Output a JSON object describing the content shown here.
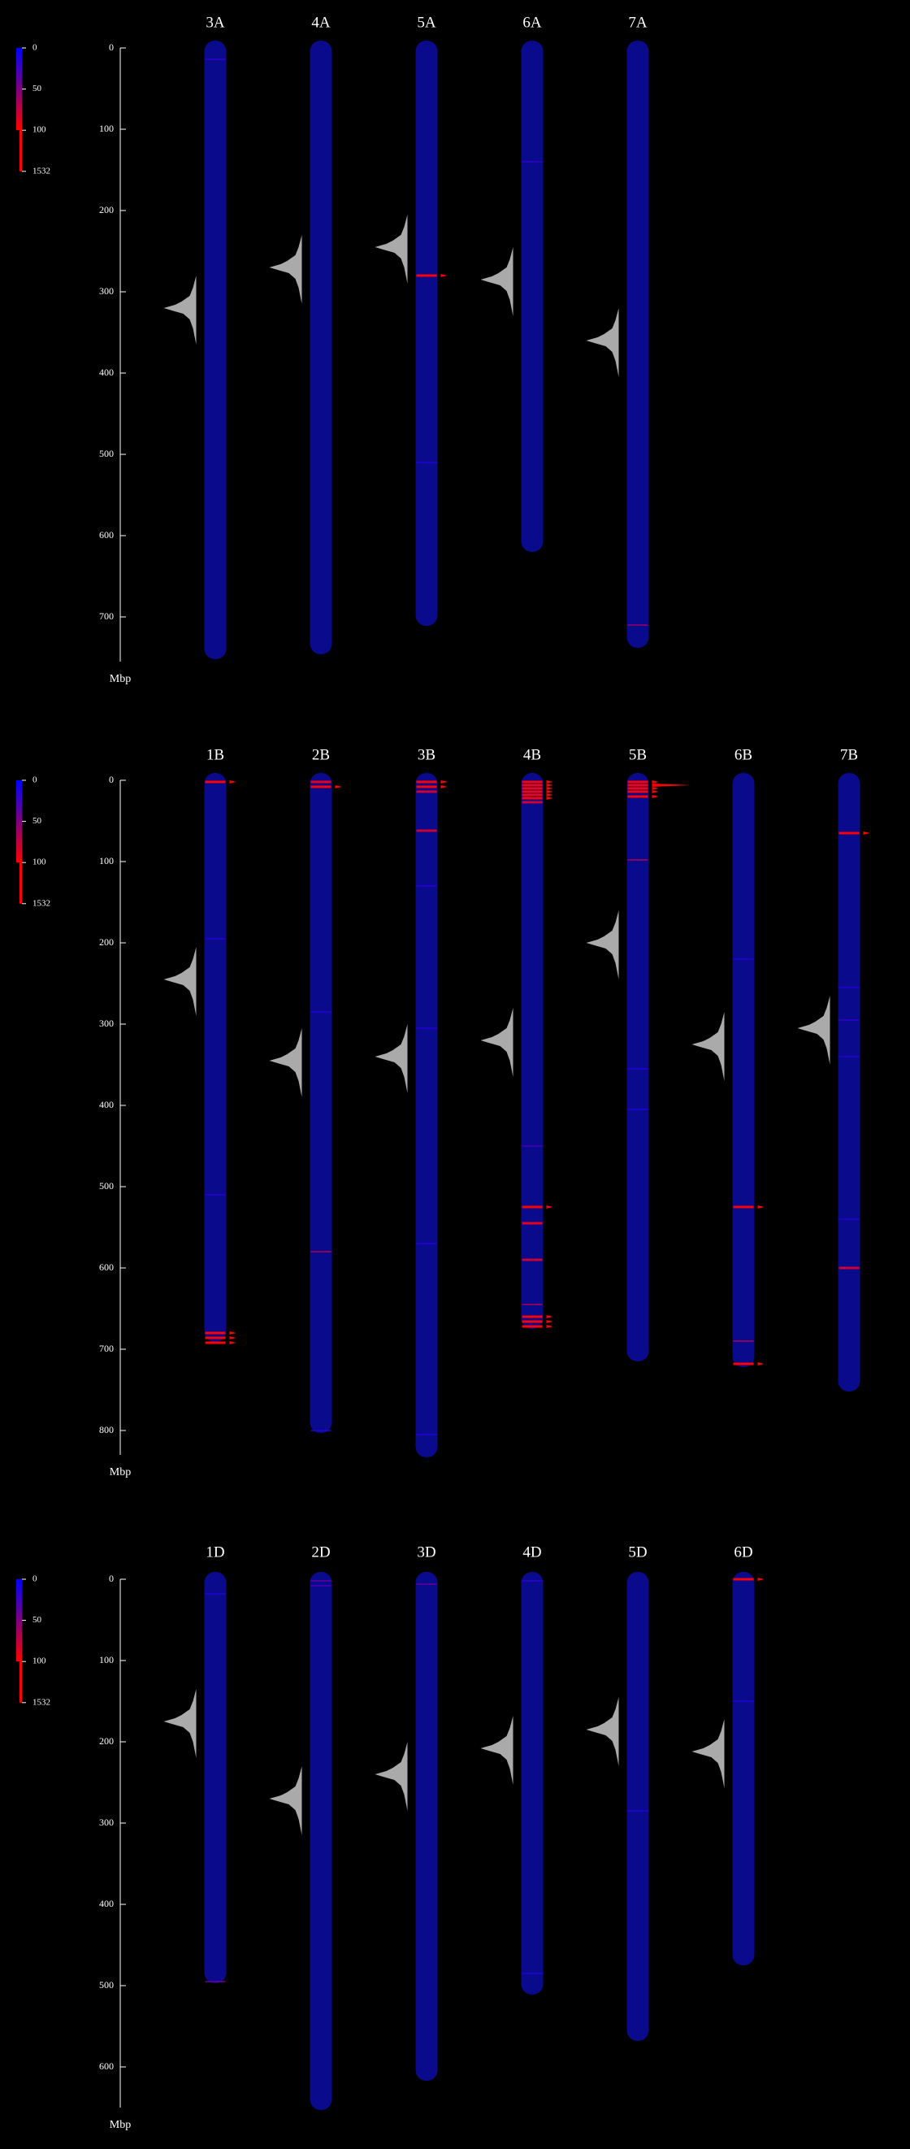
{
  "chart_data": [
    {
      "type": "ideogram",
      "ylabel": "Mbp",
      "color": "#0a0a8c",
      "peak_color": "#c8c8c8",
      "color_scale": {
        "ticks": [
          0,
          50,
          100,
          1532
        ],
        "colors": [
          "#0000ff",
          "#ff0000"
        ]
      },
      "ylim": [
        0,
        755
      ],
      "yticks": [
        0,
        100,
        200,
        300,
        400,
        500,
        600,
        700
      ],
      "categories": [
        "3A",
        "4A",
        "5A",
        "6A",
        "7A"
      ],
      "values": [
        750,
        744,
        709,
        618,
        736
      ],
      "peaks": [
        320,
        270,
        245,
        285,
        360
      ],
      "bands": [
        [
          {
            "pos": 14,
            "count": 20
          }
        ],
        [],
        [
          {
            "pos": 280,
            "count": 100
          },
          {
            "pos": 510,
            "count": 15
          }
        ],
        [
          {
            "pos": 140,
            "count": 20
          }
        ],
        [
          {
            "pos": 710,
            "count": 60
          }
        ]
      ]
    },
    {
      "type": "ideogram",
      "ylabel": "Mbp",
      "color": "#0a0a8c",
      "peak_color": "#c8c8c8",
      "color_scale": {
        "ticks": [
          0,
          50,
          100,
          1532
        ],
        "colors": [
          "#0000ff",
          "#ff0000"
        ]
      },
      "ylim": [
        0,
        830
      ],
      "yticks": [
        0,
        100,
        200,
        300,
        400,
        500,
        600,
        700,
        800
      ],
      "categories": [
        "1B",
        "2B",
        "3B",
        "4B",
        "5B",
        "6B",
        "7B"
      ],
      "values": [
        689,
        801,
        831,
        673,
        713,
        720,
        750
      ],
      "peaks": [
        245,
        345,
        340,
        320,
        200,
        325,
        305
      ],
      "bands": [
        [
          {
            "pos": 2,
            "count": 100
          },
          {
            "pos": 195,
            "count": 15
          },
          {
            "pos": 510,
            "count": 15
          },
          {
            "pos": 680,
            "count": 100
          },
          {
            "pos": 686,
            "count": 100
          },
          {
            "pos": 692,
            "count": 100
          }
        ],
        [
          {
            "pos": 2,
            "count": 90
          },
          {
            "pos": 8,
            "count": 100
          },
          {
            "pos": 285,
            "count": 15
          },
          {
            "pos": 580,
            "count": 70
          },
          {
            "pos": 800,
            "count": 15
          }
        ],
        [
          {
            "pos": 2,
            "count": 120
          },
          {
            "pos": 8,
            "count": 100
          },
          {
            "pos": 14,
            "count": 80
          },
          {
            "pos": 62,
            "count": 80
          },
          {
            "pos": 130,
            "count": 15
          },
          {
            "pos": 305,
            "count": 15
          },
          {
            "pos": 570,
            "count": 15
          },
          {
            "pos": 805,
            "count": 15
          }
        ],
        [
          {
            "pos": 2,
            "count": 100
          },
          {
            "pos": 6,
            "count": 100
          },
          {
            "pos": 10,
            "count": 100
          },
          {
            "pos": 14,
            "count": 100
          },
          {
            "pos": 18,
            "count": 100
          },
          {
            "pos": 22,
            "count": 100
          },
          {
            "pos": 27,
            "count": 80
          },
          {
            "pos": 450,
            "count": 30
          },
          {
            "pos": 525,
            "count": 100
          },
          {
            "pos": 545,
            "count": 90
          },
          {
            "pos": 590,
            "count": 80
          },
          {
            "pos": 645,
            "count": 70
          },
          {
            "pos": 660,
            "count": 100
          },
          {
            "pos": 666,
            "count": 100
          },
          {
            "pos": 672,
            "count": 100
          }
        ],
        [
          {
            "pos": 2,
            "count": 100
          },
          {
            "pos": 6,
            "count": 1532
          },
          {
            "pos": 10,
            "count": 100
          },
          {
            "pos": 14,
            "count": 100
          },
          {
            "pos": 20,
            "count": 100
          },
          {
            "pos": 98,
            "count": 70
          },
          {
            "pos": 355,
            "count": 15
          },
          {
            "pos": 405,
            "count": 15
          }
        ],
        [
          {
            "pos": 220,
            "count": 15
          },
          {
            "pos": 525,
            "count": 100
          },
          {
            "pos": 690,
            "count": 70
          },
          {
            "pos": 718,
            "count": 100
          }
        ],
        [
          {
            "pos": 65,
            "count": 100
          },
          {
            "pos": 255,
            "count": 15
          },
          {
            "pos": 295,
            "count": 20
          },
          {
            "pos": 340,
            "count": 15
          },
          {
            "pos": 540,
            "count": 15
          },
          {
            "pos": 600,
            "count": 80
          }
        ]
      ]
    },
    {
      "type": "ideogram",
      "ylabel": "Mbp",
      "color": "#0a0a8c",
      "peak_color": "#c8c8c8",
      "color_scale": {
        "ticks": [
          0,
          50,
          100,
          1532
        ],
        "colors": [
          "#0000ff",
          "#ff0000"
        ]
      },
      "ylim": [
        0,
        650
      ],
      "yticks": [
        0,
        100,
        200,
        300,
        400,
        500,
        600
      ],
      "categories": [
        "1D",
        "2D",
        "3D",
        "4D",
        "5D",
        "6D"
      ],
      "values": [
        495,
        651,
        615,
        509,
        566,
        473
      ],
      "peaks": [
        175,
        270,
        240,
        208,
        185,
        212
      ],
      "bands": [
        [
          {
            "pos": 18,
            "count": 15
          },
          {
            "pos": 495,
            "count": 40
          }
        ],
        [
          {
            "pos": 2,
            "count": 40
          },
          {
            "pos": 8,
            "count": 30
          }
        ],
        [
          {
            "pos": 6,
            "count": 40
          }
        ],
        [
          {
            "pos": 2,
            "count": 20
          },
          {
            "pos": 485,
            "count": 15
          }
        ],
        [
          {
            "pos": 285,
            "count": 15
          }
        ],
        [
          {
            "pos": 0,
            "count": 100
          },
          {
            "pos": 150,
            "count": 15
          }
        ]
      ]
    }
  ]
}
